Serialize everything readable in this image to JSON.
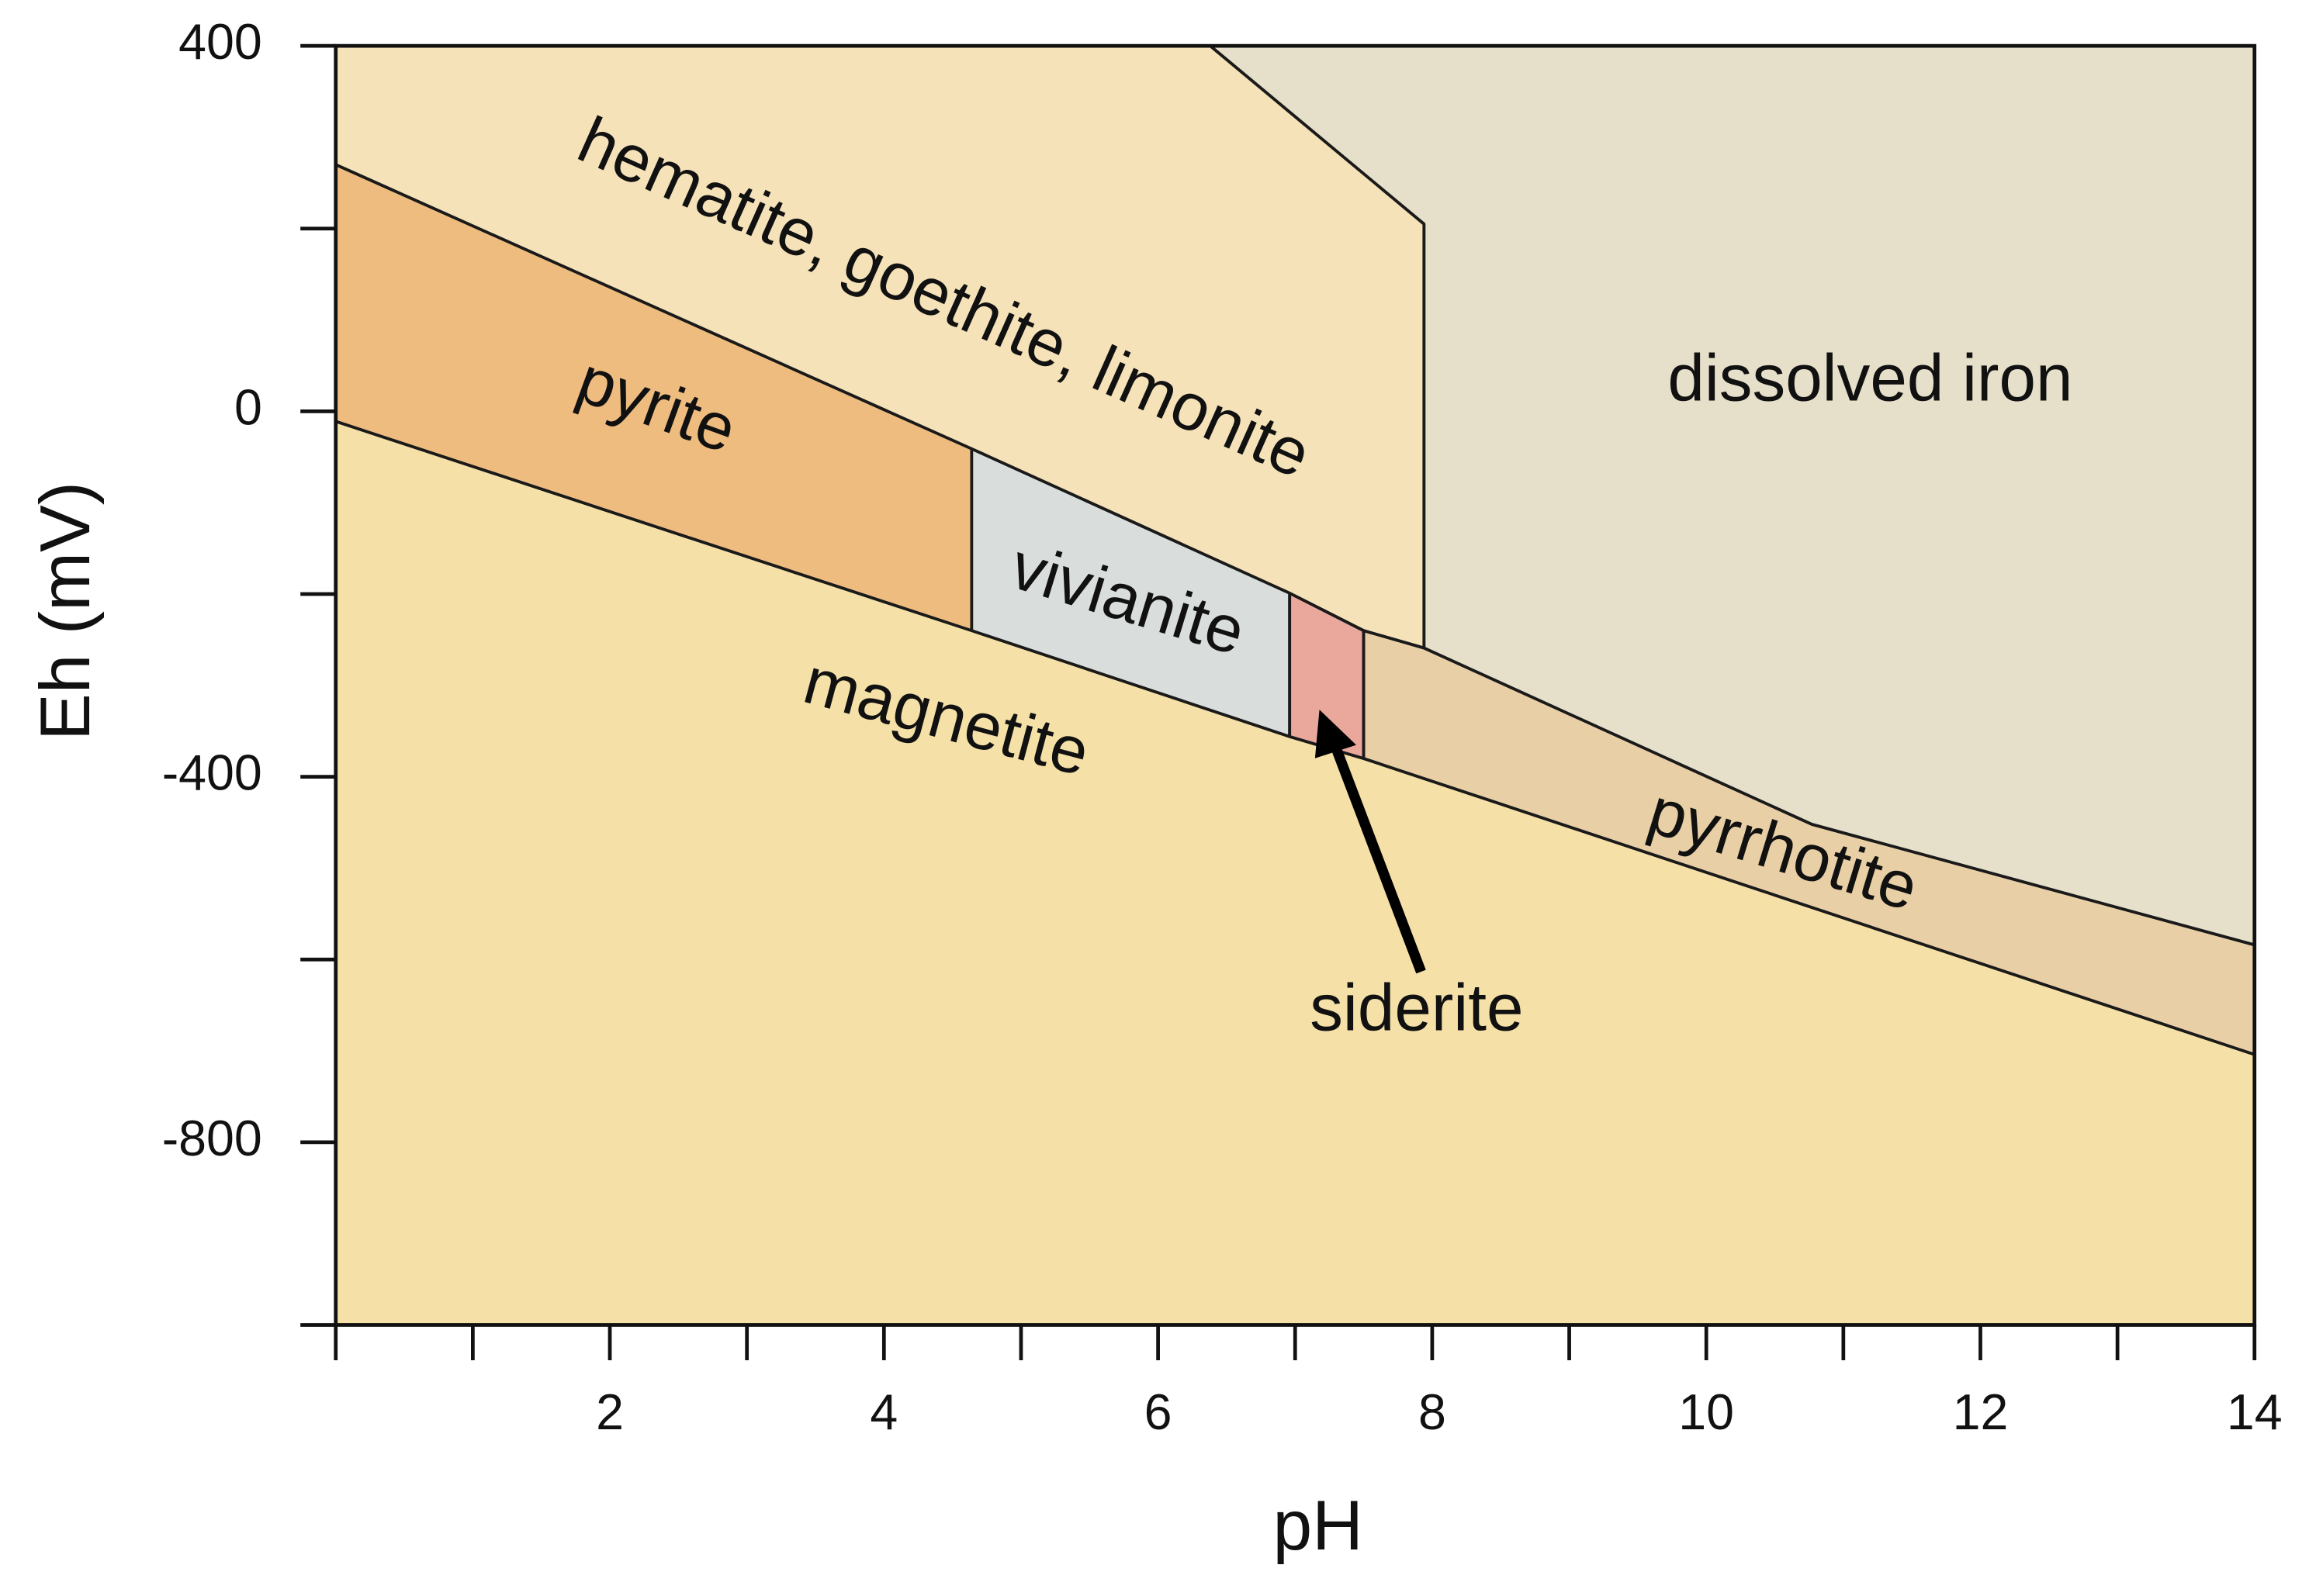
{
  "chart_data": {
    "type": "phase-diagram",
    "x_label": "pH",
    "y_label": "Eh (mV)",
    "xlim": [
      0,
      14
    ],
    "ylim": [
      -1000,
      400
    ],
    "xticks": [
      2,
      4,
      6,
      8,
      10,
      12,
      14
    ],
    "xminor_ticks": [
      0,
      1,
      3,
      5,
      7,
      9,
      11,
      13
    ],
    "yticks": [
      -800,
      -400,
      0,
      400
    ],
    "yminor_ticks": [
      -1000,
      -600,
      -200,
      200
    ],
    "regions": [
      {
        "name": "magnetite",
        "color": "#f5e0a8",
        "x": [
          0,
          4.64,
          6.96,
          7.5,
          14,
          14,
          0
        ],
        "y": [
          -11,
          -240,
          -356,
          -380,
          -704,
          -1000,
          -1000
        ]
      },
      {
        "name": "pyrite",
        "color": "#efbc80",
        "x": [
          0,
          4.64,
          4.64,
          0
        ],
        "y": [
          270,
          -41,
          -240,
          -11
        ]
      },
      {
        "name": "vivianite",
        "color": "#d9dedd",
        "x": [
          4.64,
          6.96,
          6.96,
          4.64
        ],
        "y": [
          -41,
          -199,
          -356,
          -240
        ]
      },
      {
        "name": "siderite",
        "color": "#eaa89d",
        "x": [
          6.96,
          7.5,
          7.5,
          6.96
        ],
        "y": [
          -199,
          -240,
          -380,
          -356
        ]
      },
      {
        "name": "pyrrhotite",
        "color": "#e8cfa6",
        "x": [
          7.5,
          7.94,
          10.77,
          14,
          14,
          7.5
        ],
        "y": [
          -240,
          -259,
          -452,
          -584,
          -704,
          -380
        ]
      },
      {
        "name": "dissolved iron",
        "color": "#e6dfca",
        "x": [
          6.38,
          14,
          14,
          10.77,
          7.94,
          7.94
        ],
        "y": [
          400,
          400,
          -584,
          -452,
          -259,
          205
        ]
      },
      {
        "name": "hematite, goethite, limonite",
        "color": "#f5e2b8",
        "x": [
          0,
          6.38,
          7.94,
          7.94,
          7.5,
          6.96,
          4.64,
          0
        ],
        "y": [
          400,
          400,
          205,
          -259,
          -240,
          -199,
          -41,
          270
        ]
      }
    ]
  }
}
